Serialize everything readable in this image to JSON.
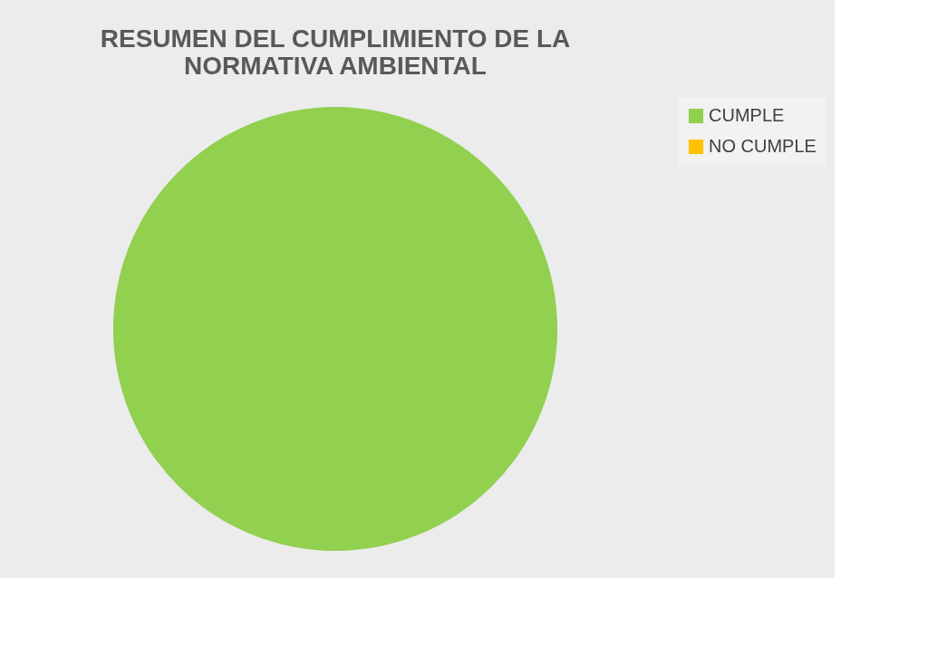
{
  "chart_data": {
    "type": "pie",
    "title": "RESUMEN  DEL CUMPLIMIENTO DE LA\nNORMATIVA AMBIENTAL",
    "categories": [
      "CUMPLE",
      "NO CUMPLE"
    ],
    "values": [
      100,
      0
    ],
    "colors": [
      "#92d050",
      "#ffc000"
    ],
    "legend": "right"
  }
}
